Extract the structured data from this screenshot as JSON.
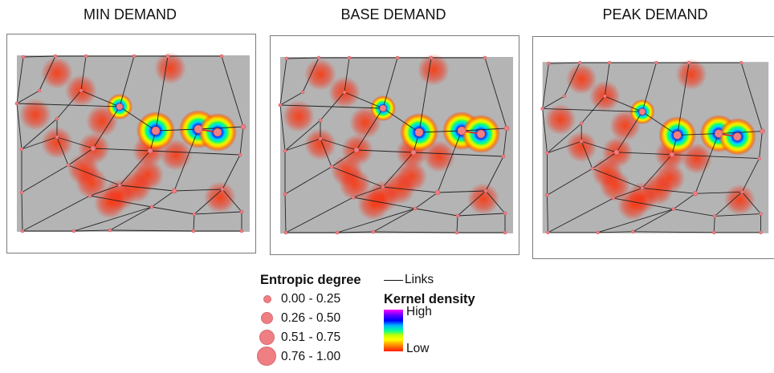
{
  "panels": [
    {
      "title": "MIN DEMAND"
    },
    {
      "title": "BASE DEMAND"
    },
    {
      "title": "PEAK DEMAND"
    }
  ],
  "legend": {
    "entropic_title": "Entropic degree",
    "links_label": "Links",
    "classes": [
      "0.00 - 0.25",
      "0.26 - 0.50",
      "0.51 - 0.75",
      "0.76 - 1.00"
    ],
    "kernel_title": "Kernel density",
    "high_label": "High",
    "low_label": "Low",
    "node_color": "#ef7f83"
  }
}
